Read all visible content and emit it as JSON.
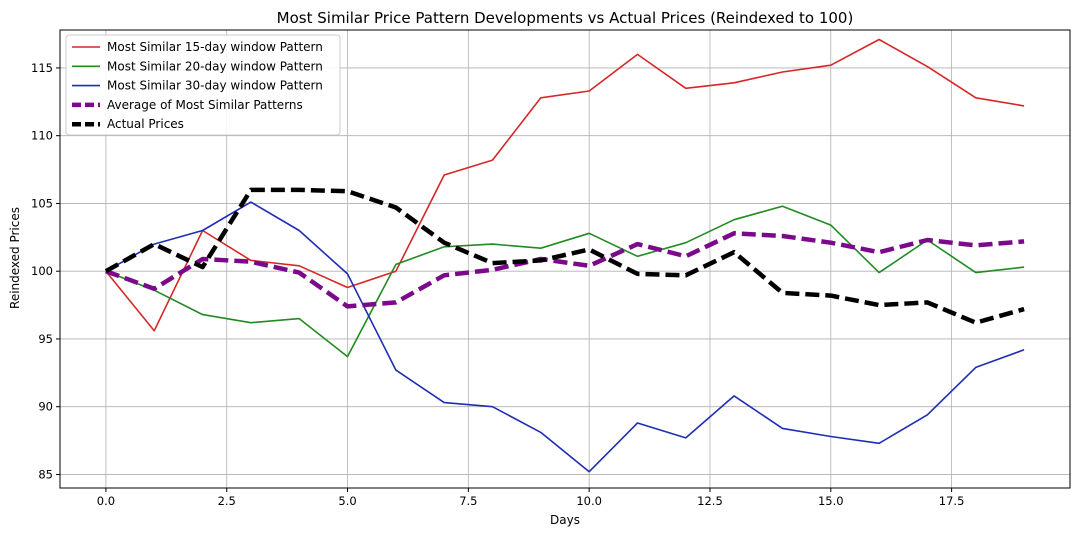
{
  "chart_data": {
    "type": "line",
    "title": "Most Similar Price Pattern Developments vs Actual Prices (Reindexed to 100)",
    "xlabel": "Days",
    "ylabel": "Reindexed Prices",
    "xlim": [
      -0.95,
      19.95
    ],
    "ylim": [
      84.0,
      117.8
    ],
    "xticks": [
      0.0,
      2.5,
      5.0,
      7.5,
      10.0,
      12.5,
      15.0,
      17.5
    ],
    "xtick_labels": [
      "0.0",
      "2.5",
      "5.0",
      "7.5",
      "10.0",
      "12.5",
      "15.0",
      "17.5"
    ],
    "yticks": [
      85,
      90,
      95,
      100,
      105,
      110,
      115
    ],
    "ytick_labels": [
      "85",
      "90",
      "95",
      "100",
      "105",
      "110",
      "115"
    ],
    "grid": true,
    "legend_position": "top-left",
    "x": [
      0,
      1,
      2,
      3,
      4,
      5,
      6,
      7,
      8,
      9,
      10,
      11,
      12,
      13,
      14,
      15,
      16,
      17,
      18,
      19
    ],
    "series": [
      {
        "name": "Most Similar 15-day window Pattern",
        "color": "#d62728",
        "style": "solid",
        "values": [
          100.0,
          95.6,
          103.0,
          100.8,
          100.4,
          98.8,
          100.0,
          107.1,
          108.2,
          112.8,
          113.3,
          116.0,
          113.5,
          113.9,
          114.7,
          115.2,
          117.1,
          115.1,
          112.8,
          112.2
        ]
      },
      {
        "name": "Most Similar 20-day window Pattern",
        "color": "#228b22",
        "style": "solid",
        "values": [
          100.0,
          98.6,
          96.8,
          96.2,
          96.5,
          93.7,
          100.5,
          101.8,
          102.0,
          101.7,
          102.8,
          101.1,
          102.1,
          103.8,
          104.8,
          103.4,
          99.9,
          102.3,
          99.9,
          100.3
        ]
      },
      {
        "name": "Most Similar 30-day window Pattern",
        "color": "#1f2db4",
        "style": "solid",
        "values": [
          100.0,
          102.0,
          103.0,
          105.1,
          103.0,
          99.8,
          92.7,
          90.3,
          90.0,
          88.1,
          85.2,
          88.8,
          87.7,
          90.8,
          88.4,
          87.8,
          87.3,
          89.4,
          92.9,
          94.2
        ]
      },
      {
        "name": "Average of Most Similar Patterns",
        "color": "#7b0a8a",
        "style": "dashed",
        "values": [
          100.0,
          98.7,
          100.9,
          100.7,
          99.9,
          97.4,
          97.7,
          99.7,
          100.1,
          100.9,
          100.4,
          102.0,
          101.1,
          102.8,
          102.6,
          102.1,
          101.4,
          102.3,
          101.9,
          102.2
        ]
      },
      {
        "name": "Actual Prices",
        "color": "#000000",
        "style": "dashed",
        "values": [
          100.0,
          102.0,
          100.3,
          106.0,
          106.0,
          105.9,
          104.7,
          102.1,
          100.6,
          100.8,
          101.6,
          99.8,
          99.7,
          101.4,
          98.4,
          98.2,
          97.5,
          97.7,
          96.2,
          97.2
        ]
      }
    ]
  }
}
